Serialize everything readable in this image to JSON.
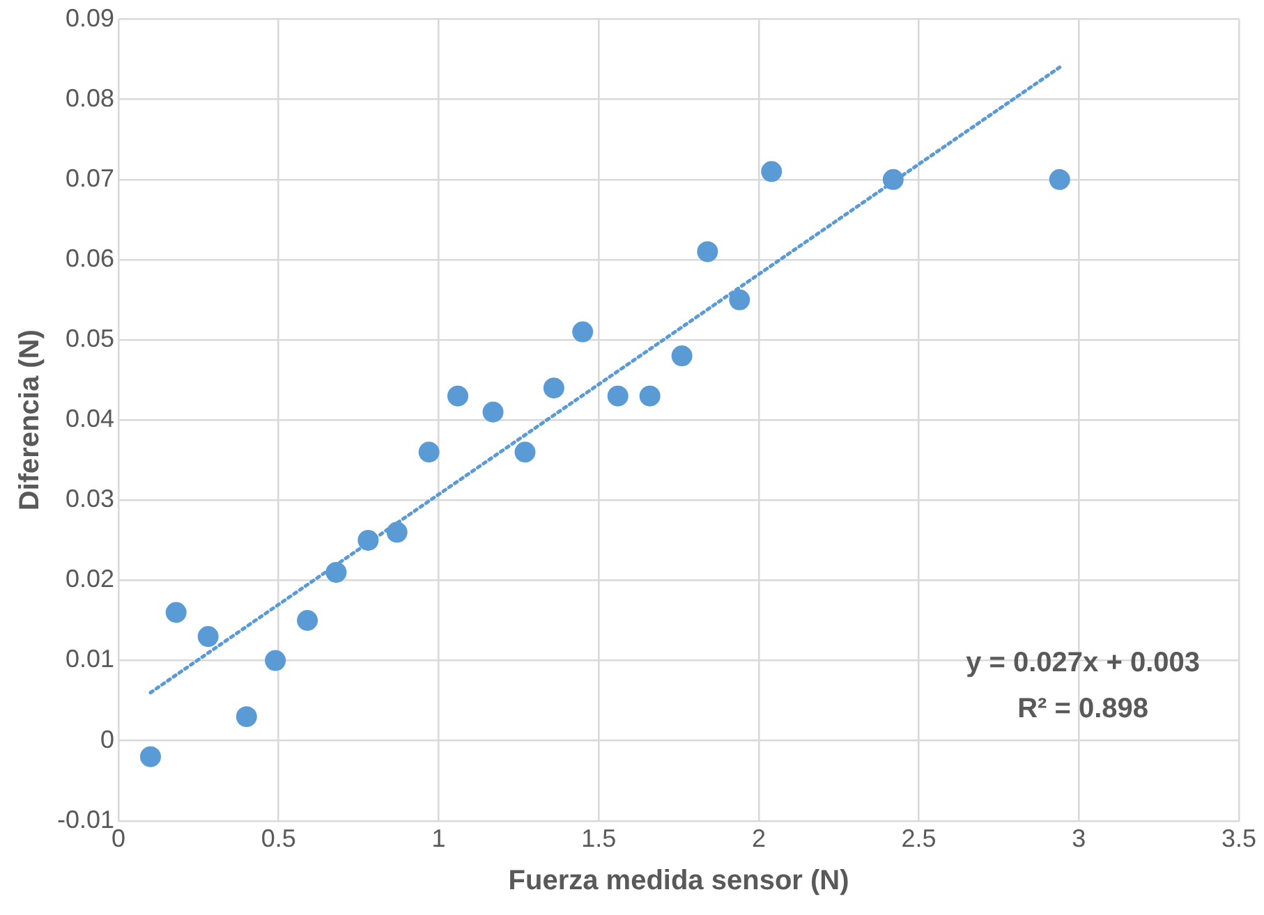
{
  "chart_data": {
    "type": "scatter",
    "xlabel": "Fuerza medida sensor (N)",
    "ylabel": "Diferencia (N)",
    "xlim": [
      0,
      3.5
    ],
    "xticks": [
      0,
      0.5,
      1,
      1.5,
      2,
      2.5,
      3,
      3.5
    ],
    "ylim": [
      -0.01,
      0.09
    ],
    "yticks": [
      -0.01,
      0,
      0.01,
      0.02,
      0.03,
      0.04,
      0.05,
      0.06,
      0.07,
      0.08,
      0.09
    ],
    "grid": true,
    "marker": "circle",
    "series": [
      {
        "color": "#5b9bd5",
        "x": [
          0.1,
          0.18,
          0.28,
          0.4,
          0.49,
          0.59,
          0.68,
          0.78,
          0.87,
          0.97,
          1.06,
          1.17,
          1.27,
          1.36,
          1.45,
          1.56,
          1.66,
          1.76,
          1.84,
          1.94,
          2.04,
          2.42,
          2.94
        ],
        "values": [
          -0.002,
          0.016,
          0.013,
          0.003,
          0.01,
          0.015,
          0.021,
          0.025,
          0.026,
          0.036,
          0.043,
          0.041,
          0.036,
          0.044,
          0.051,
          0.043,
          0.043,
          0.048,
          0.061,
          0.055,
          0.071,
          0.07,
          0.07
        ]
      },
      {
        "type": "line",
        "color": "#5b9bd5",
        "line_style": "dotted",
        "marker": "none",
        "x": [
          0.1,
          2.94
        ],
        "values": [
          0.006,
          0.084
        ]
      }
    ],
    "annotations": [
      "y = 0.027x + 0.003",
      "R² = 0.898"
    ]
  }
}
